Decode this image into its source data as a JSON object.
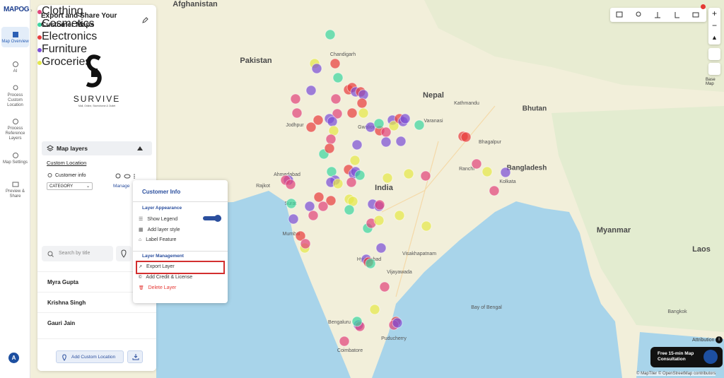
{
  "sidebar": {
    "logo": "MAPOG",
    "items": [
      "Map Overview",
      "AI",
      "Process Custom Location",
      "Process Reference Layers",
      "Map Settings",
      "Preview & Share"
    ],
    "avatar": "A"
  },
  "panel": {
    "title": "Export and Share Your Customer Maps",
    "logo_name": "SURVIVE",
    "logo_tagline": "Mall, Online, Storedrome & Outlet",
    "layers_header": "Map layers",
    "layer_group": "Custom Location",
    "layer_name": "Customer info",
    "dropdown": "CATEGORY",
    "manage": "Manage",
    "legend": [
      {
        "label": "Clothing",
        "color": "#e0457b"
      },
      {
        "label": "Cosmetics",
        "color": "#3dd6a0"
      },
      {
        "label": "Electronics",
        "color": "#e83e3e"
      },
      {
        "label": "Furniture",
        "color": "#7b4fd6"
      },
      {
        "label": "Groceries",
        "color": "#e4e84a"
      }
    ],
    "search_placeholder": "Search by title",
    "list": [
      "Myra Gupta",
      "Krishna Singh",
      "Gauri Jain"
    ],
    "add_button": "Add Custom Location"
  },
  "menu": {
    "title": "Customer Info",
    "appearance_section": "Layer Appearance",
    "appearance_items": [
      "Show Legend",
      "Add layer style",
      "Label Feature"
    ],
    "management_section": "Layer Management",
    "management_items": [
      "Export Layer",
      "Add Credit & License",
      "Delete Layer"
    ]
  },
  "map": {
    "labels": [
      "Afghanistan",
      "Pakistan",
      "Nepal",
      "Kathmandu",
      "Bhutan",
      "Bangladesh",
      "India",
      "Myanmar",
      "Laos",
      "Bay of Bengal",
      "Kolkata",
      "Mumbai",
      "Hyderabad",
      "Bengaluru",
      "Varanasi",
      "Jodhpur",
      "Ahmedabad",
      "Rajkot",
      "Surat",
      "Ranchi",
      "Bhagalpur",
      "Vijayawada",
      "Visakhapatnam",
      "Puducherry",
      "Coimbatore",
      "Gwalior",
      "Chandigarh",
      "Bangkok"
    ],
    "base_map": "Base Map",
    "attribution": "Attribution",
    "cta": "Free 15-min Map Consultation",
    "credits": "© MapTiler © OpenStreetMap contributors"
  }
}
